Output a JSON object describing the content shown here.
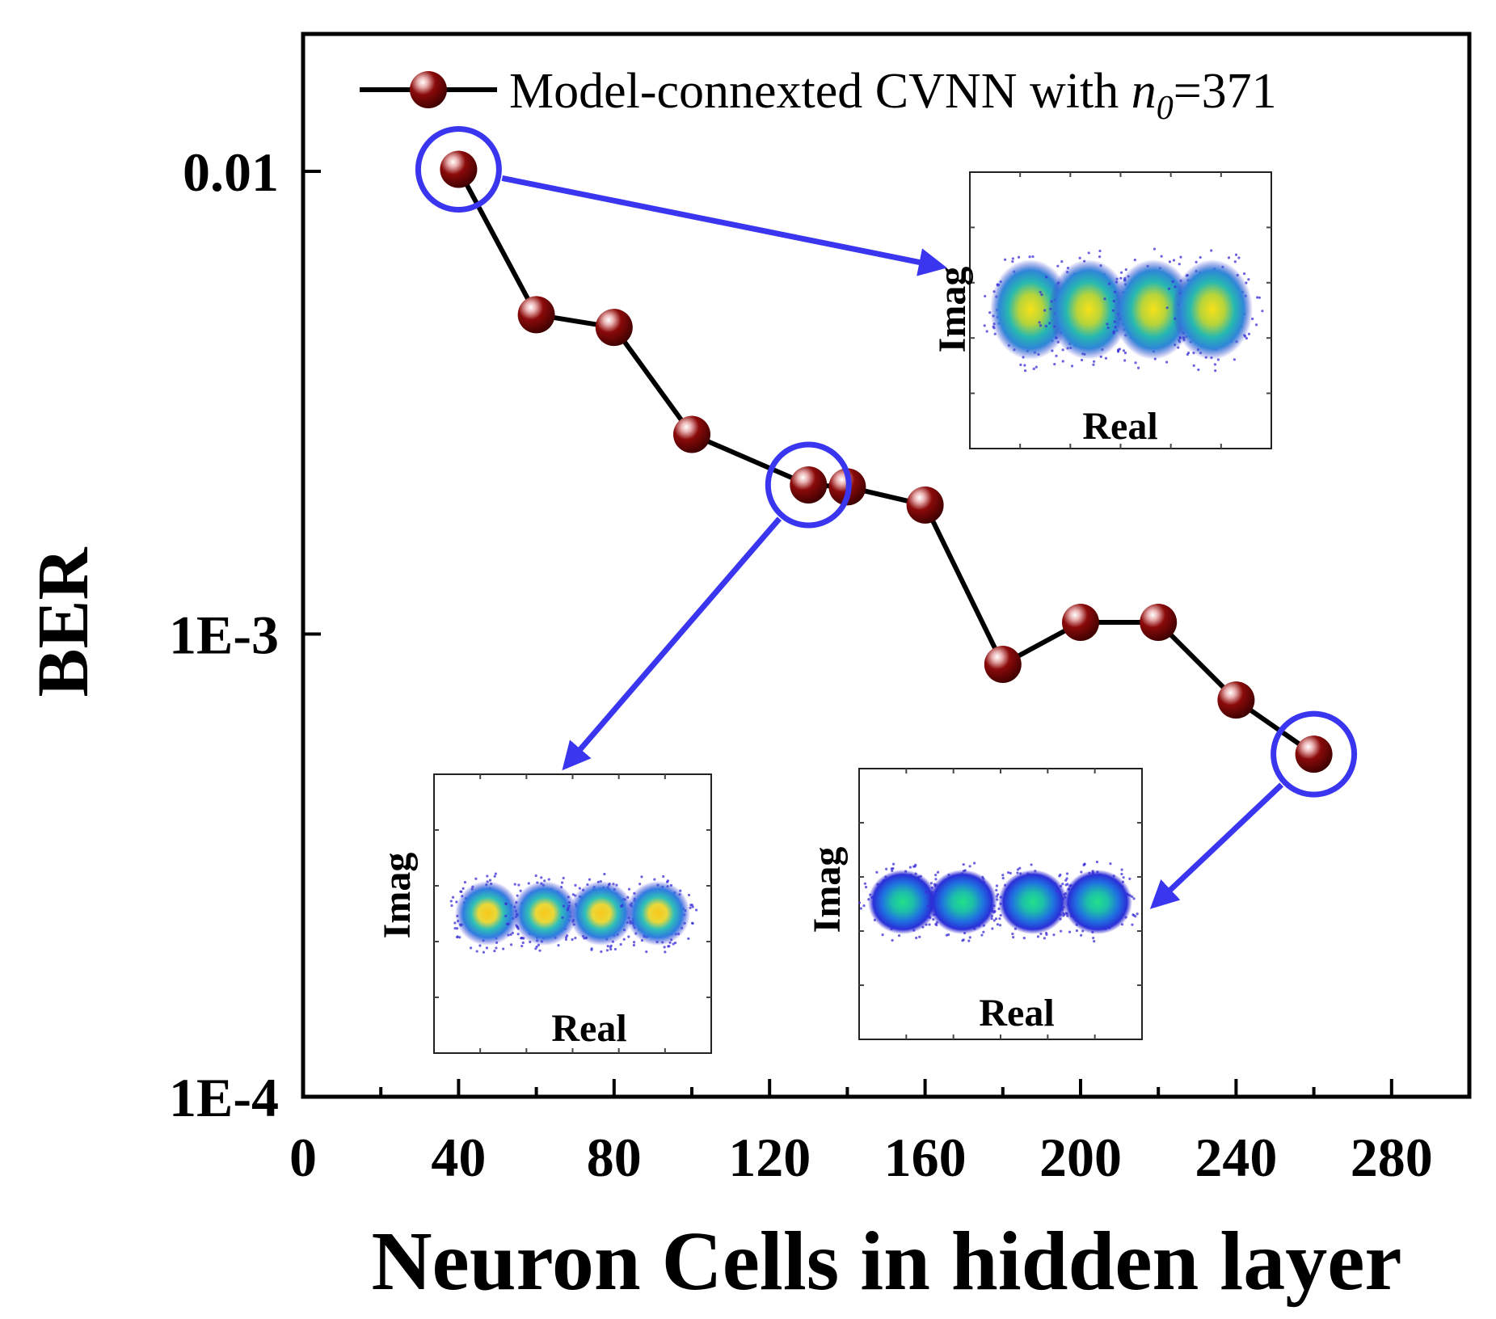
{
  "chart_data": {
    "type": "line",
    "xlabel": "Neuron Cells in hidden layer",
    "ylabel": "BER",
    "xlim": [
      0,
      300
    ],
    "ylim": [
      0.0001,
      0.02
    ],
    "yscale": "log",
    "x_ticks": [
      0,
      40,
      80,
      120,
      160,
      200,
      240,
      280
    ],
    "x_tick_labels": [
      "0",
      "40",
      "80",
      "120",
      "160",
      "200",
      "240",
      "280"
    ],
    "y_ticks": [
      0.01,
      0.001,
      0.0001
    ],
    "y_tick_labels": [
      "0.01",
      "1E-3",
      "1E-4"
    ],
    "series": [
      {
        "name": "Model-connexted CVNN with n0=371",
        "legend_prefix": "Model-connexted CVNN with ",
        "legend_var": "n",
        "legend_sub": "0",
        "legend_suffix": "=371",
        "color": "#000000",
        "marker_color": "#8b0000",
        "x": [
          40,
          60,
          80,
          100,
          130,
          140,
          160,
          180,
          200,
          220,
          240,
          260
        ],
        "y": [
          0.0101,
          0.0049,
          0.0046,
          0.0027,
          0.0021,
          0.00208,
          0.0019,
          0.00086,
          0.00106,
          0.00106,
          0.00072,
          0.00055
        ]
      }
    ],
    "highlights": [
      {
        "x": 40,
        "y": 0.0101,
        "color": "#3a36f0"
      },
      {
        "x": 130,
        "y": 0.0021,
        "color": "#3a36f0"
      },
      {
        "x": 260,
        "y": 0.00055,
        "color": "#3a36f0"
      }
    ],
    "insets": [
      {
        "name": "inset-top-right",
        "point": 0,
        "xlabel": "Real",
        "ylabel": "Imag",
        "style": "yellow-broad"
      },
      {
        "name": "inset-bottom-left",
        "point": 1,
        "xlabel": "Real",
        "ylabel": "Imag",
        "style": "yellow-tight"
      },
      {
        "name": "inset-bottom-right",
        "point": 2,
        "xlabel": "Real",
        "ylabel": "Imag",
        "style": "green-tight"
      }
    ]
  }
}
